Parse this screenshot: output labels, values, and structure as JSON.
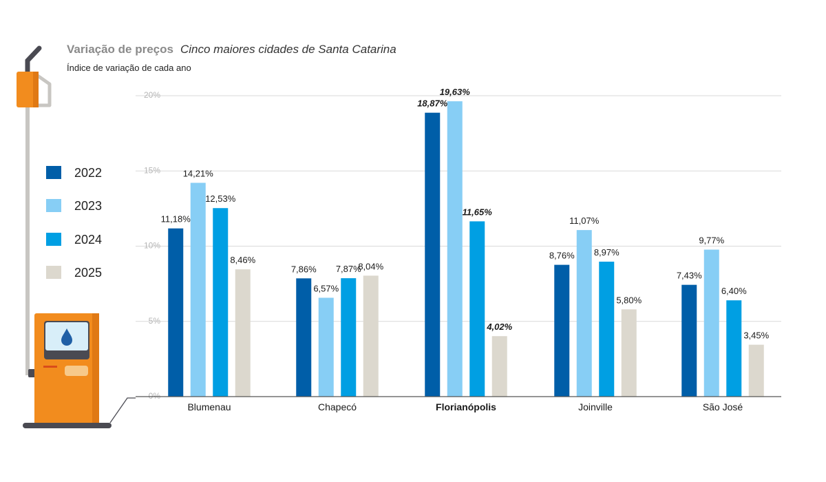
{
  "header": {
    "title": "Variação de preços",
    "title_sub": "Cinco maiores cidades de Santa Catarina",
    "subtitle": "Índice de variação de cada ano"
  },
  "colors": {
    "2022": "#005ea8",
    "2023": "#87cef5",
    "2024": "#009fe3",
    "2025": "#dcd8ce",
    "grid": "#d9d9d9",
    "axis": "#555555",
    "pump_orange": "#f28c1e",
    "pump_gray": "#4a4a52"
  },
  "icons": {
    "pump": "fuel-pump-icon",
    "drop": "fuel-drop-icon"
  },
  "chart_data": {
    "type": "bar",
    "title": "Variação de preços",
    "subtitle": "Cinco maiores cidades de Santa Catarina",
    "ylabel": "Índice de variação de cada ano",
    "categories": [
      "Blumenau",
      "Chapecó",
      "Florianópolis",
      "Joinville",
      "São José"
    ],
    "highlight_category": "Florianópolis",
    "yticks": [
      "0%",
      "5%",
      "10%",
      "15%",
      "20%"
    ],
    "ylim": [
      0,
      20
    ],
    "grid": true,
    "legend_position": "left",
    "series": [
      {
        "name": "2022",
        "values": [
          11.18,
          7.86,
          18.87,
          8.76,
          7.43
        ],
        "labels": [
          "11,18%",
          "7,86%",
          "18,87%",
          "8,76%",
          "7,43%"
        ]
      },
      {
        "name": "2023",
        "values": [
          14.21,
          6.57,
          19.63,
          11.07,
          9.77
        ],
        "labels": [
          "14,21%",
          "6,57%",
          "19,63%",
          "11,07%",
          "9,77%"
        ]
      },
      {
        "name": "2024",
        "values": [
          12.53,
          7.87,
          11.65,
          8.97,
          6.4
        ],
        "labels": [
          "12,53%",
          "7,87%",
          "11,65%",
          "8,97%",
          "6,40%"
        ]
      },
      {
        "name": "2025",
        "values": [
          8.46,
          8.04,
          4.02,
          5.8,
          3.45
        ],
        "labels": [
          "8,46%",
          "8,04%",
          "4,02%",
          "5,80%",
          "3,45%"
        ]
      }
    ]
  }
}
